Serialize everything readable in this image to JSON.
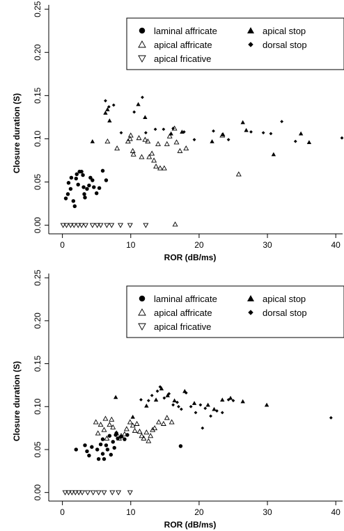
{
  "chart_data": [
    {
      "type": "scatter",
      "xlabel": "ROR (dB/ms)",
      "ylabel": "Closure duration (S)",
      "xlim": [
        -2,
        41
      ],
      "ylim": [
        -0.01,
        0.255
      ],
      "xticks": [
        "0",
        "10",
        "20",
        "30",
        "40"
      ],
      "xtick_values": [
        0,
        10,
        20,
        30,
        40
      ],
      "yticks": [
        "0.00",
        "0.05",
        "0.10",
        "0.15",
        "0.20",
        "0.25"
      ],
      "ytick_values": [
        0,
        0.05,
        0.1,
        0.15,
        0.2,
        0.25
      ],
      "legend_position": "top-right",
      "legend": [
        {
          "label": "laminal affricate",
          "marker": "circle"
        },
        {
          "label": "apical stop",
          "marker": "triangle-filled"
        },
        {
          "label": "apical affricate",
          "marker": "triangle-open"
        },
        {
          "label": "dorsal stop",
          "marker": "diamond"
        },
        {
          "label": "apical fricative",
          "marker": "triangle-down-open"
        }
      ],
      "series": [
        {
          "name": "laminal affricate",
          "marker": "circle",
          "points": [
            [
              0.5,
              0.031
            ],
            [
              0.8,
              0.036
            ],
            [
              0.9,
              0.049
            ],
            [
              1.2,
              0.042
            ],
            [
              1.3,
              0.055
            ],
            [
              1.6,
              0.028
            ],
            [
              1.8,
              0.022
            ],
            [
              2.0,
              0.054
            ],
            [
              2.1,
              0.059
            ],
            [
              2.3,
              0.047
            ],
            [
              2.5,
              0.062
            ],
            [
              2.8,
              0.062
            ],
            [
              3.0,
              0.058
            ],
            [
              3.1,
              0.044
            ],
            [
              3.2,
              0.036
            ],
            [
              3.3,
              0.032
            ],
            [
              3.6,
              0.042
            ],
            [
              3.9,
              0.046
            ],
            [
              4.1,
              0.055
            ],
            [
              4.4,
              0.052
            ],
            [
              4.6,
              0.044
            ],
            [
              5.0,
              0.037
            ],
            [
              5.4,
              0.043
            ],
            [
              5.9,
              0.063
            ],
            [
              6.4,
              0.052
            ]
          ]
        },
        {
          "name": "apical stop",
          "marker": "triangle-filled",
          "points": [
            [
              4.4,
              0.097
            ],
            [
              6.3,
              0.13
            ],
            [
              6.6,
              0.134
            ],
            [
              6.9,
              0.121
            ],
            [
              11.1,
              0.14
            ],
            [
              12.1,
              0.125
            ],
            [
              15.9,
              0.106
            ],
            [
              17.5,
              0.108
            ],
            [
              21.9,
              0.097
            ],
            [
              23.5,
              0.105
            ],
            [
              26.4,
              0.119
            ],
            [
              26.9,
              0.11
            ],
            [
              30.9,
              0.082
            ],
            [
              34.9,
              0.106
            ],
            [
              36.1,
              0.096
            ]
          ]
        },
        {
          "name": "apical affricate",
          "marker": "triangle-open",
          "points": [
            [
              6.6,
              0.097
            ],
            [
              8.0,
              0.089
            ],
            [
              9.6,
              0.097
            ],
            [
              9.9,
              0.1
            ],
            [
              10.0,
              0.104
            ],
            [
              10.3,
              0.086
            ],
            [
              10.4,
              0.082
            ],
            [
              11.2,
              0.101
            ],
            [
              11.6,
              0.079
            ],
            [
              12.1,
              0.099
            ],
            [
              12.5,
              0.097
            ],
            [
              12.7,
              0.079
            ],
            [
              13.1,
              0.083
            ],
            [
              13.4,
              0.075
            ],
            [
              13.7,
              0.068
            ],
            [
              14.0,
              0.094
            ],
            [
              14.3,
              0.066
            ],
            [
              14.9,
              0.066
            ],
            [
              15.3,
              0.094
            ],
            [
              15.7,
              0.103
            ],
            [
              16.4,
              0.112
            ],
            [
              16.7,
              0.096
            ],
            [
              17.2,
              0.086
            ],
            [
              18.1,
              0.089
            ],
            [
              23.4,
              0.104
            ],
            [
              25.8,
              0.059
            ],
            [
              16.5,
              0.001
            ]
          ]
        },
        {
          "name": "dorsal stop",
          "marker": "diamond",
          "points": [
            [
              6.3,
              0.144
            ],
            [
              6.8,
              0.137
            ],
            [
              7.5,
              0.139
            ],
            [
              8.6,
              0.107
            ],
            [
              10.5,
              0.131
            ],
            [
              11.7,
              0.148
            ],
            [
              12.2,
              0.107
            ],
            [
              13.6,
              0.111
            ],
            [
              14.8,
              0.111
            ],
            [
              16.2,
              0.112
            ],
            [
              17.8,
              0.108
            ],
            [
              19.3,
              0.099
            ],
            [
              22.1,
              0.109
            ],
            [
              24.3,
              0.099
            ],
            [
              27.6,
              0.108
            ],
            [
              29.4,
              0.107
            ],
            [
              30.5,
              0.106
            ],
            [
              32.1,
              0.12
            ],
            [
              34.1,
              0.097
            ],
            [
              40.9,
              0.101
            ]
          ]
        },
        {
          "name": "apical fricative",
          "marker": "triangle-down-open",
          "points": [
            [
              0.1,
              0.0
            ],
            [
              0.6,
              0.0
            ],
            [
              1.2,
              0.0
            ],
            [
              1.7,
              0.0
            ],
            [
              2.3,
              0.0
            ],
            [
              2.8,
              0.0
            ],
            [
              3.4,
              0.0
            ],
            [
              4.4,
              0.0
            ],
            [
              5.1,
              0.0
            ],
            [
              5.6,
              0.0
            ],
            [
              6.5,
              0.0
            ],
            [
              7.2,
              0.0
            ],
            [
              8.5,
              0.0
            ],
            [
              9.9,
              0.0
            ],
            [
              12.2,
              0.0
            ]
          ]
        }
      ]
    },
    {
      "type": "scatter",
      "xlabel": "ROR (dB/ms)",
      "ylabel": "Closure duration (S)",
      "xlim": [
        -2,
        41
      ],
      "ylim": [
        -0.01,
        0.255
      ],
      "xticks": [
        "0",
        "10",
        "20",
        "30",
        "40"
      ],
      "xtick_values": [
        0,
        10,
        20,
        30,
        40
      ],
      "yticks": [
        "0.00",
        "0.05",
        "0.10",
        "0.15",
        "0.20",
        "0.25"
      ],
      "ytick_values": [
        0,
        0.05,
        0.1,
        0.15,
        0.2,
        0.25
      ],
      "legend_position": "top-right",
      "legend": [
        {
          "label": "laminal affricate",
          "marker": "circle"
        },
        {
          "label": "apical stop",
          "marker": "triangle-filled"
        },
        {
          "label": "apical affricate",
          "marker": "triangle-open"
        },
        {
          "label": "dorsal stop",
          "marker": "diamond"
        },
        {
          "label": "apical fricative",
          "marker": "triangle-down-open"
        }
      ],
      "series": [
        {
          "name": "laminal affricate",
          "marker": "circle",
          "points": [
            [
              2.0,
              0.05
            ],
            [
              3.3,
              0.055
            ],
            [
              3.6,
              0.048
            ],
            [
              3.9,
              0.043
            ],
            [
              4.3,
              0.053
            ],
            [
              5.1,
              0.05
            ],
            [
              5.3,
              0.039
            ],
            [
              5.6,
              0.056
            ],
            [
              5.9,
              0.062
            ],
            [
              5.9,
              0.045
            ],
            [
              6.1,
              0.039
            ],
            [
              6.4,
              0.055
            ],
            [
              6.6,
              0.05
            ],
            [
              6.9,
              0.066
            ],
            [
              7.1,
              0.044
            ],
            [
              7.4,
              0.059
            ],
            [
              7.6,
              0.052
            ],
            [
              7.9,
              0.069
            ],
            [
              8.1,
              0.063
            ],
            [
              8.6,
              0.065
            ],
            [
              9.1,
              0.062
            ],
            [
              9.5,
              0.067
            ],
            [
              17.3,
              0.054
            ],
            [
              7.8,
              0.067
            ]
          ]
        },
        {
          "name": "apical stop",
          "marker": "triangle-filled",
          "points": [
            [
              7.8,
              0.111
            ],
            [
              10.3,
              0.088
            ],
            [
              12.3,
              0.101
            ],
            [
              13.7,
              0.108
            ],
            [
              14.5,
              0.121
            ],
            [
              15.4,
              0.113
            ],
            [
              16.4,
              0.107
            ],
            [
              17.9,
              0.118
            ],
            [
              19.3,
              0.104
            ],
            [
              21.3,
              0.102
            ],
            [
              22.2,
              0.097
            ],
            [
              23.4,
              0.108
            ],
            [
              24.6,
              0.11
            ],
            [
              26.4,
              0.106
            ],
            [
              29.9,
              0.102
            ]
          ]
        },
        {
          "name": "apical affricate",
          "marker": "triangle-open",
          "points": [
            [
              4.9,
              0.082
            ],
            [
              5.2,
              0.069
            ],
            [
              5.6,
              0.079
            ],
            [
              6.1,
              0.073
            ],
            [
              6.3,
              0.086
            ],
            [
              6.5,
              0.063
            ],
            [
              6.9,
              0.079
            ],
            [
              7.2,
              0.085
            ],
            [
              7.4,
              0.076
            ],
            [
              7.9,
              0.069
            ],
            [
              8.3,
              0.063
            ],
            [
              8.6,
              0.066
            ],
            [
              9.1,
              0.068
            ],
            [
              9.4,
              0.074
            ],
            [
              9.9,
              0.082
            ],
            [
              10.3,
              0.078
            ],
            [
              10.6,
              0.072
            ],
            [
              10.9,
              0.08
            ],
            [
              11.3,
              0.071
            ],
            [
              11.6,
              0.066
            ],
            [
              11.9,
              0.063
            ],
            [
              12.3,
              0.07
            ],
            [
              12.6,
              0.06
            ],
            [
              12.9,
              0.066
            ],
            [
              13.2,
              0.073
            ],
            [
              13.5,
              0.075
            ],
            [
              14.1,
              0.082
            ],
            [
              14.8,
              0.08
            ],
            [
              15.3,
              0.087
            ],
            [
              16.0,
              0.082
            ]
          ]
        },
        {
          "name": "dorsal stop",
          "marker": "diamond",
          "points": [
            [
              11.5,
              0.108
            ],
            [
              12.6,
              0.107
            ],
            [
              13.1,
              0.113
            ],
            [
              13.9,
              0.118
            ],
            [
              14.3,
              0.123
            ],
            [
              14.9,
              0.11
            ],
            [
              15.6,
              0.115
            ],
            [
              16.2,
              0.102
            ],
            [
              16.8,
              0.105
            ],
            [
              17.4,
              0.097
            ],
            [
              18.1,
              0.116
            ],
            [
              18.8,
              0.1
            ],
            [
              19.5,
              0.093
            ],
            [
              20.2,
              0.102
            ],
            [
              20.9,
              0.098
            ],
            [
              21.7,
              0.089
            ],
            [
              22.6,
              0.095
            ],
            [
              23.4,
              0.093
            ],
            [
              24.3,
              0.108
            ],
            [
              25.0,
              0.107
            ],
            [
              39.3,
              0.087
            ],
            [
              20.5,
              0.075
            ],
            [
              17.0,
              0.1
            ]
          ]
        },
        {
          "name": "apical fricative",
          "marker": "triangle-down-open",
          "points": [
            [
              0.4,
              0.0
            ],
            [
              0.9,
              0.0
            ],
            [
              1.4,
              0.0
            ],
            [
              1.9,
              0.0
            ],
            [
              2.4,
              0.0
            ],
            [
              2.9,
              0.0
            ],
            [
              3.7,
              0.0
            ],
            [
              4.5,
              0.0
            ],
            [
              5.3,
              0.0
            ],
            [
              6.1,
              0.0
            ],
            [
              7.3,
              0.0
            ],
            [
              8.2,
              0.0
            ],
            [
              9.9,
              0.0
            ]
          ]
        }
      ]
    }
  ]
}
